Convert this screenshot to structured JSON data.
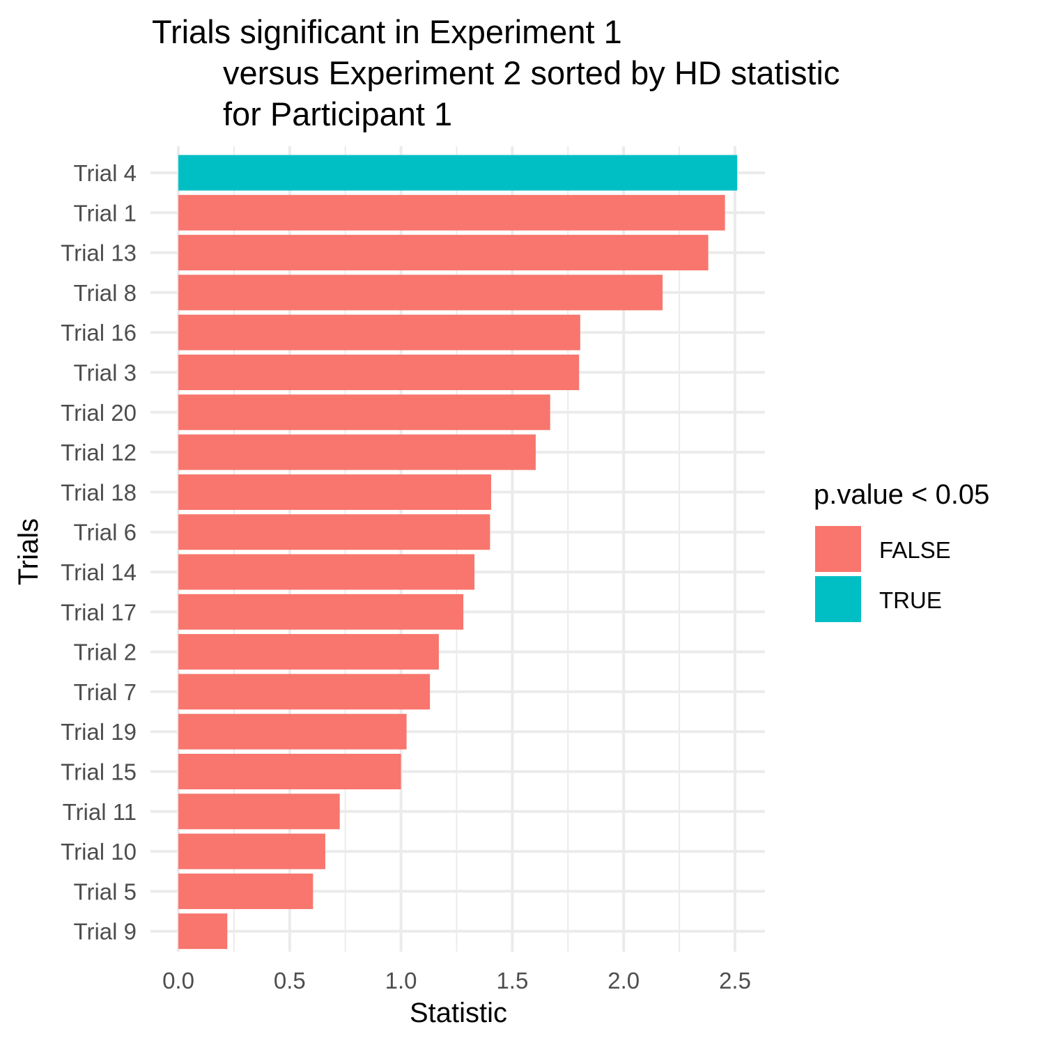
{
  "chart_data": {
    "type": "bar",
    "orientation": "horizontal",
    "title_lines": [
      "Trials significant in Experiment 1",
      "versus Experiment 2 sorted by HD statistic",
      "for Participant 1"
    ],
    "xlabel": "Statistic",
    "ylabel": "Trials",
    "xlim": [
      0,
      2.5
    ],
    "x_ticks": [
      "0.0",
      "0.5",
      "1.0",
      "1.5",
      "2.0",
      "2.5"
    ],
    "grid": true,
    "legend": {
      "title": "p.value < 0.05",
      "position": "right",
      "entries": [
        {
          "label": "FALSE",
          "color": "#F8766D"
        },
        {
          "label": "TRUE",
          "color": "#00BFC4"
        }
      ]
    },
    "bars": [
      {
        "category": "Trial 4",
        "value": 2.51,
        "significant": "TRUE"
      },
      {
        "category": "Trial 1",
        "value": 2.455,
        "significant": "FALSE"
      },
      {
        "category": "Trial 13",
        "value": 2.38,
        "significant": "FALSE"
      },
      {
        "category": "Trial 8",
        "value": 2.175,
        "significant": "FALSE"
      },
      {
        "category": "Trial 16",
        "value": 1.805,
        "significant": "FALSE"
      },
      {
        "category": "Trial 3",
        "value": 1.8,
        "significant": "FALSE"
      },
      {
        "category": "Trial 20",
        "value": 1.67,
        "significant": "FALSE"
      },
      {
        "category": "Trial 12",
        "value": 1.605,
        "significant": "FALSE"
      },
      {
        "category": "Trial 18",
        "value": 1.405,
        "significant": "FALSE"
      },
      {
        "category": "Trial 6",
        "value": 1.4,
        "significant": "FALSE"
      },
      {
        "category": "Trial 14",
        "value": 1.33,
        "significant": "FALSE"
      },
      {
        "category": "Trial 17",
        "value": 1.28,
        "significant": "FALSE"
      },
      {
        "category": "Trial 2",
        "value": 1.17,
        "significant": "FALSE"
      },
      {
        "category": "Trial 7",
        "value": 1.13,
        "significant": "FALSE"
      },
      {
        "category": "Trial 19",
        "value": 1.025,
        "significant": "FALSE"
      },
      {
        "category": "Trial 15",
        "value": 1.0,
        "significant": "FALSE"
      },
      {
        "category": "Trial 11",
        "value": 0.725,
        "significant": "FALSE"
      },
      {
        "category": "Trial 10",
        "value": 0.66,
        "significant": "FALSE"
      },
      {
        "category": "Trial 5",
        "value": 0.605,
        "significant": "FALSE"
      },
      {
        "category": "Trial 9",
        "value": 0.22,
        "significant": "FALSE"
      }
    ]
  }
}
